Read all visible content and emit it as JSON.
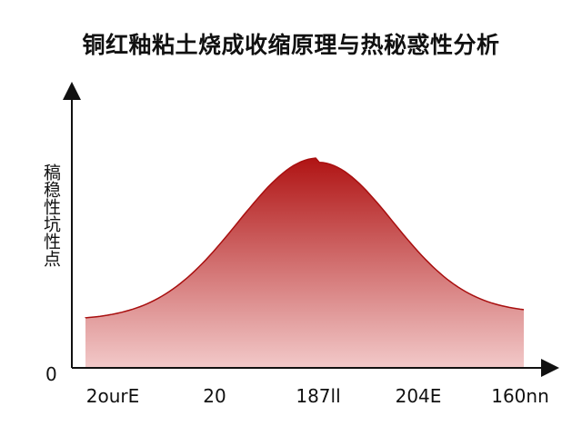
{
  "title": "铜红釉粘土烧成收缩原理与热秘惑性分析",
  "chart_data": {
    "type": "area",
    "title": "铜红釉粘土烧成收缩原理与热秘惑性分析",
    "ylabel": "稿稳性坑性点",
    "ytick_label": "0",
    "categories": [
      "2ourE",
      "20",
      "187ll",
      "204E",
      "160nn"
    ],
    "y_values": [
      0.2,
      0.43,
      1.0,
      0.42,
      0.23
    ],
    "ylim": [
      0,
      1.2
    ],
    "grid": false,
    "legend": "none",
    "colors": {
      "top": "#b01414",
      "bottom": "#f2c9c9",
      "stroke": "#a80f0f"
    }
  }
}
